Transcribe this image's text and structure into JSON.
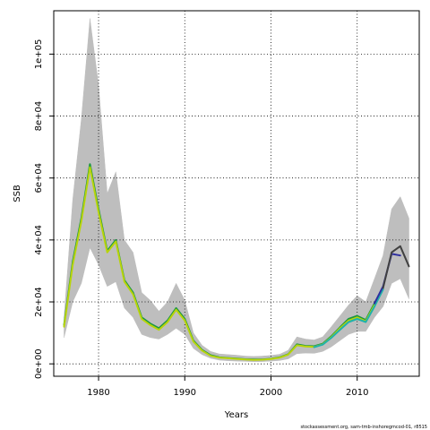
{
  "chart_data": {
    "type": "line",
    "title": "",
    "xlabel": "Years",
    "ylabel": "SSB",
    "xlim": [
      1974.8,
      2017.2
    ],
    "ylim": [
      -4000,
      114000
    ],
    "grid": true,
    "grid_style": "dotted",
    "x_ticks": [
      1980,
      1990,
      2000,
      2010
    ],
    "x_tick_labels": [
      "1980",
      "1990",
      "2000",
      "2010"
    ],
    "y_ticks": [
      0,
      20000,
      40000,
      60000,
      80000,
      100000
    ],
    "y_tick_labels": [
      "0e+00",
      "2e+04",
      "4e+04",
      "6e+04",
      "8e+04",
      "1e+05"
    ],
    "confidence_band": {
      "color": "#bebebe",
      "x": [
        1976,
        1977,
        1978,
        1979,
        1980,
        1981,
        1982,
        1983,
        1984,
        1985,
        1986,
        1987,
        1988,
        1989,
        1990,
        1991,
        1992,
        1993,
        1994,
        1995,
        1996,
        1997,
        1998,
        1999,
        2000,
        2001,
        2002,
        2003,
        2004,
        2005,
        2006,
        2007,
        2008,
        2009,
        2010,
        2011,
        2012,
        2013,
        2014,
        2015,
        2016
      ],
      "lower": [
        8500,
        20000,
        26000,
        37500,
        32000,
        25000,
        26500,
        18000,
        15000,
        9500,
        8500,
        8000,
        9500,
        11500,
        9500,
        5000,
        3000,
        1800,
        1200,
        1000,
        900,
        800,
        700,
        750,
        900,
        1100,
        1600,
        3300,
        3500,
        3400,
        4000,
        5500,
        7500,
        9500,
        10500,
        10500,
        15000,
        18500,
        26000,
        27500,
        21000
      ],
      "upper": [
        15000,
        53000,
        79000,
        111500,
        90000,
        55000,
        62000,
        40000,
        36000,
        23000,
        20500,
        17000,
        20000,
        26000,
        20500,
        10000,
        6000,
        4000,
        3200,
        3000,
        2800,
        2500,
        2400,
        2500,
        2700,
        3100,
        4400,
        8700,
        8000,
        7700,
        8700,
        12000,
        15500,
        19000,
        22000,
        20000,
        27500,
        35000,
        50000,
        54000,
        47000
      ]
    },
    "series": [
      {
        "color": "#1a9641",
        "x": [
          1976,
          1977,
          1978,
          1979,
          1980,
          1981,
          1982,
          1983,
          1984,
          1985,
          1986,
          1987,
          1988,
          1989,
          1990,
          1991,
          1992,
          1993,
          1994,
          1995,
          1996,
          1997,
          1998,
          1999,
          2000,
          2001,
          2002,
          2003,
          2004,
          2005,
          2006,
          2007,
          2008,
          2009,
          2010,
          2011,
          2012,
          2013
        ],
        "values": [
          12500,
          33000,
          47000,
          64500,
          50000,
          36500,
          40000,
          27000,
          23000,
          15000,
          13000,
          11500,
          14000,
          18000,
          14500,
          7500,
          4500,
          2800,
          2100,
          1900,
          1700,
          1500,
          1400,
          1450,
          1650,
          2100,
          3100,
          6300,
          5800,
          5700,
          6500,
          8900,
          11800,
          14500,
          15500,
          14200,
          19500,
          24500
        ]
      },
      {
        "color": "#b8d40a",
        "x": [
          1976,
          1977,
          1978,
          1979,
          1980,
          1981,
          1982,
          1983,
          1984,
          1985,
          1986,
          1987,
          1988,
          1989,
          1990,
          1991,
          1992,
          1993,
          1994,
          1995,
          1996,
          1997,
          1998,
          1999,
          2000,
          2001,
          2002,
          2003,
          2004,
          2005,
          2006,
          2007,
          2008,
          2009,
          2010,
          2011,
          2012
        ],
        "values": [
          12000,
          32000,
          46000,
          63500,
          49000,
          36000,
          39500,
          26500,
          22500,
          14500,
          12500,
          11000,
          13500,
          17500,
          14000,
          7200,
          4300,
          2600,
          2000,
          1800,
          1600,
          1400,
          1300,
          1350,
          1550,
          2000,
          3000,
          6000,
          5600,
          5500,
          6300,
          8600,
          11500,
          14000,
          15000,
          13800,
          19000
        ]
      },
      {
        "color": "#20b2aa",
        "x": [
          2005,
          2006,
          2007,
          2008,
          2009,
          2010,
          2011,
          2012,
          2013
        ],
        "values": [
          5400,
          6200,
          8400,
          11000,
          13500,
          14500,
          13500,
          18500,
          24000
        ]
      },
      {
        "color": "#2f2fa0",
        "x": [
          2012,
          2013,
          2014,
          2015
        ],
        "values": [
          19500,
          25000,
          35500,
          35000
        ]
      },
      {
        "color": "#404040",
        "x": [
          2013,
          2014,
          2015,
          2016
        ],
        "values": [
          24500,
          36000,
          38000,
          31500
        ]
      }
    ]
  },
  "footer": {
    "text": "stockassessment.org, sam-tmb-inshoregmcod-01, r8515"
  }
}
